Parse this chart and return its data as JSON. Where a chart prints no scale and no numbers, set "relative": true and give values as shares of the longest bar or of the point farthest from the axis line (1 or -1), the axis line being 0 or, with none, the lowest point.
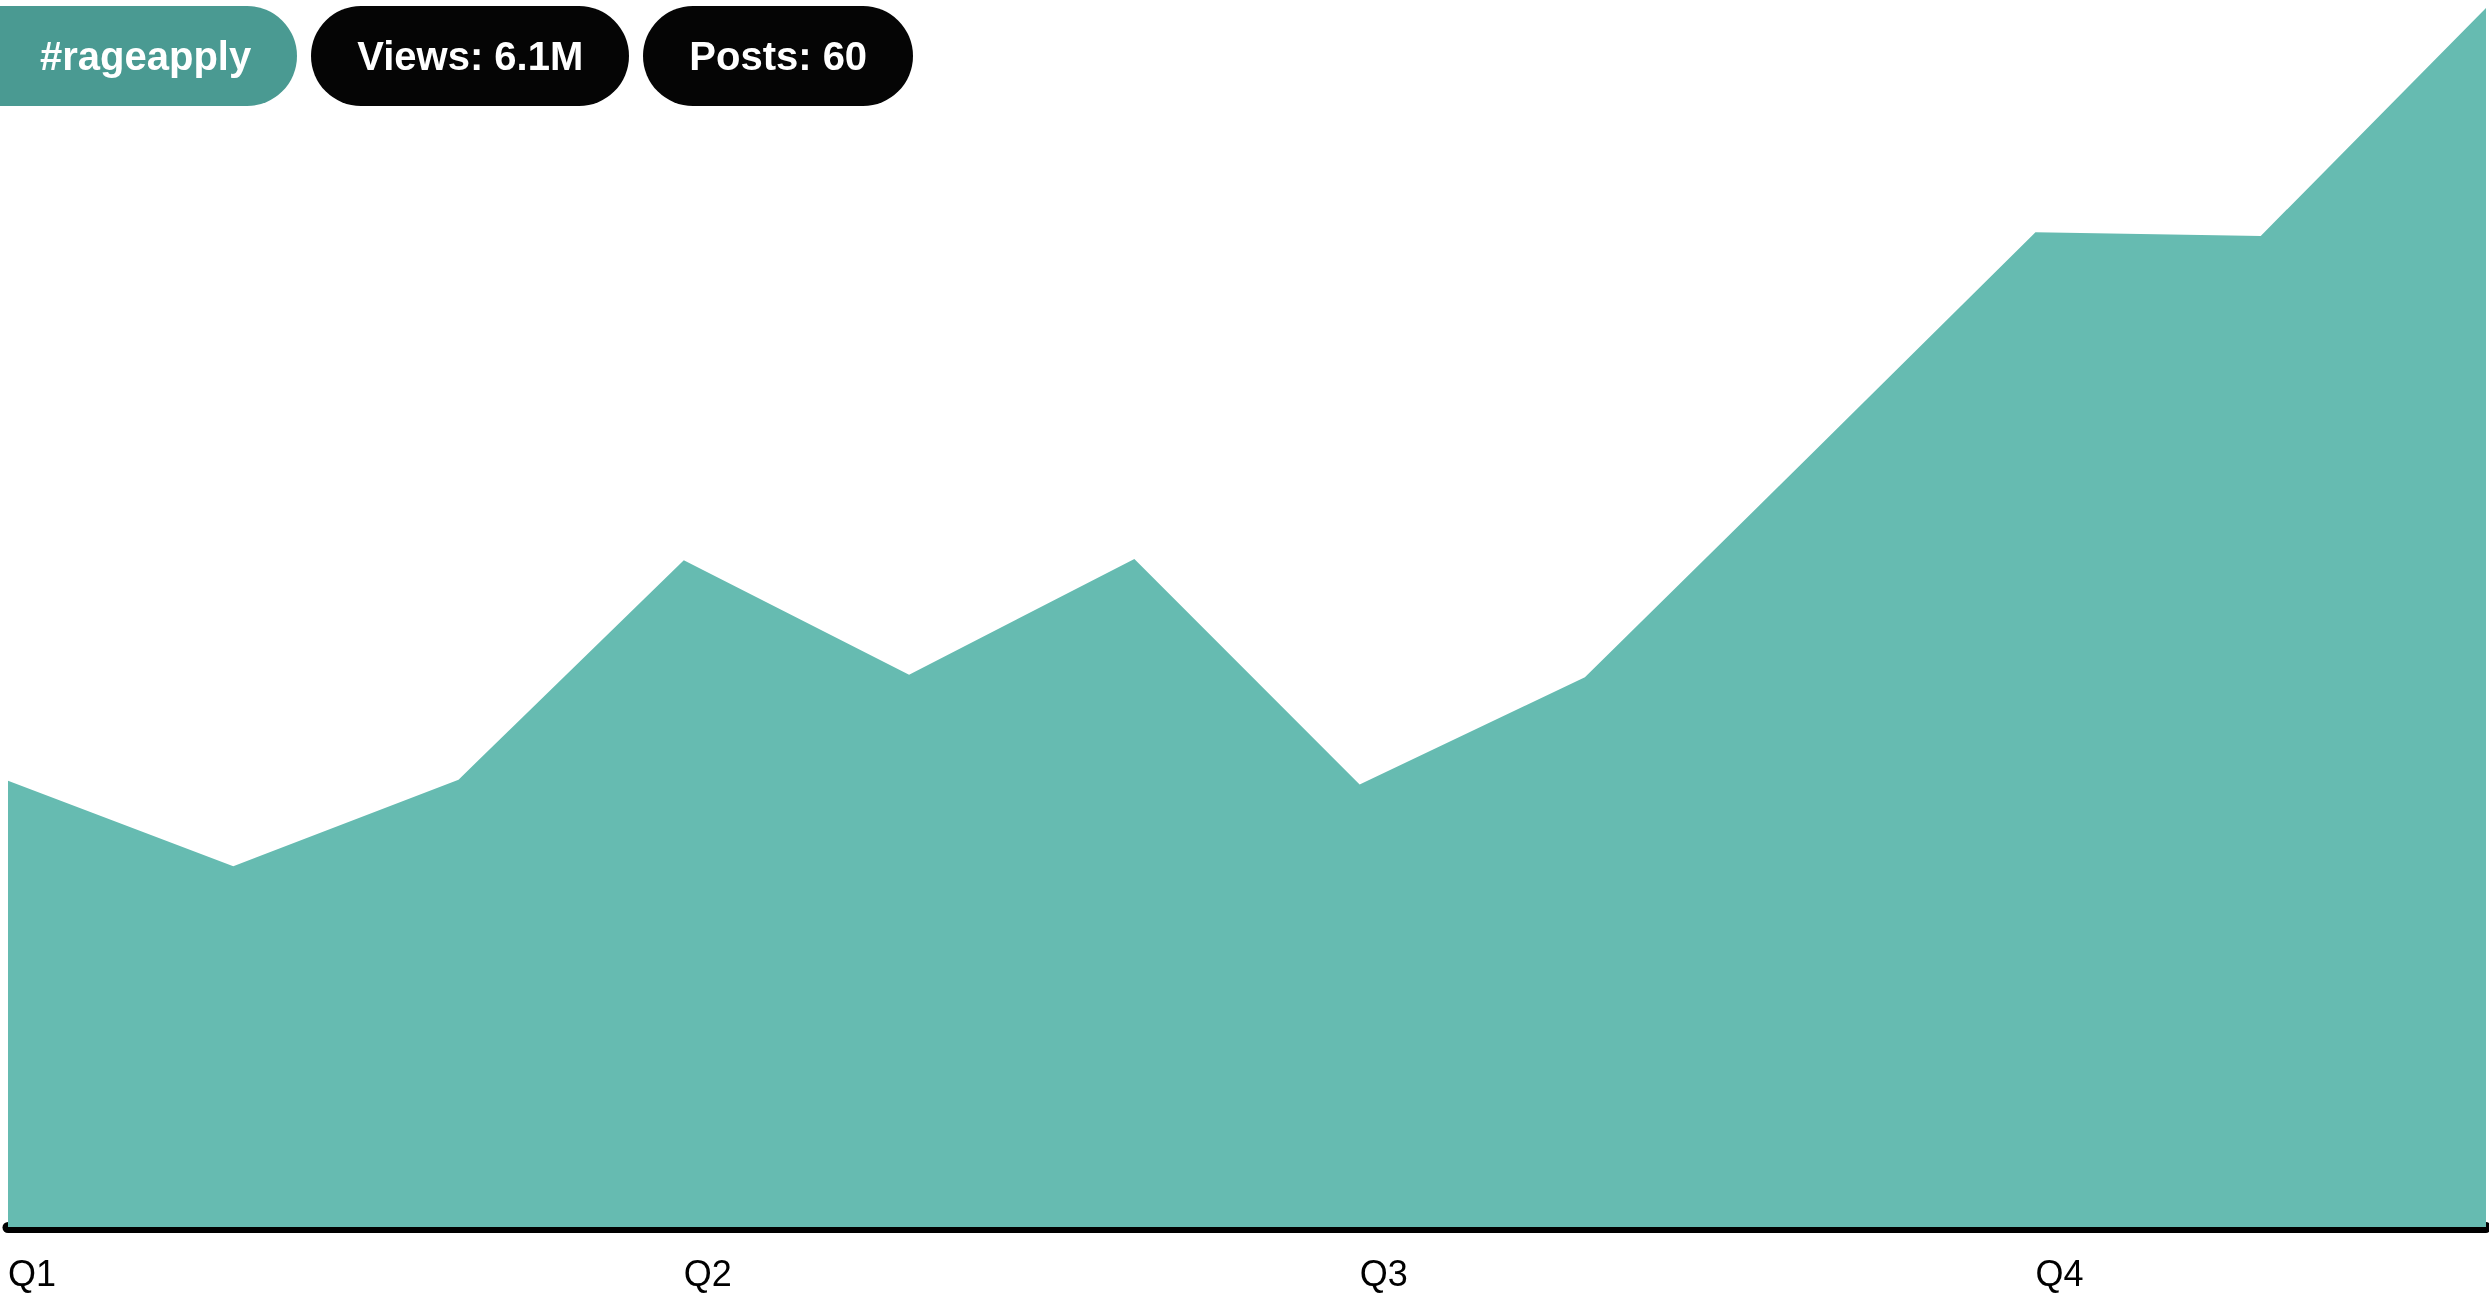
{
  "chart_data": {
    "type": "area",
    "title": "#rageapply",
    "annotations": [
      "Views: 6.1M",
      "Posts: 60"
    ],
    "categories": [
      "Q1",
      null,
      null,
      "Q2",
      null,
      null,
      "Q3",
      null,
      null,
      "Q4",
      null,
      null
    ],
    "relative": true,
    "series": [
      {
        "color": "#66bbb1",
        "values": [
          0.366,
          0.296,
          0.367,
          0.547,
          0.453,
          0.548,
          0.363,
          0.451,
          0.633,
          0.816,
          0.813,
          1
        ]
      }
    ]
  }
}
